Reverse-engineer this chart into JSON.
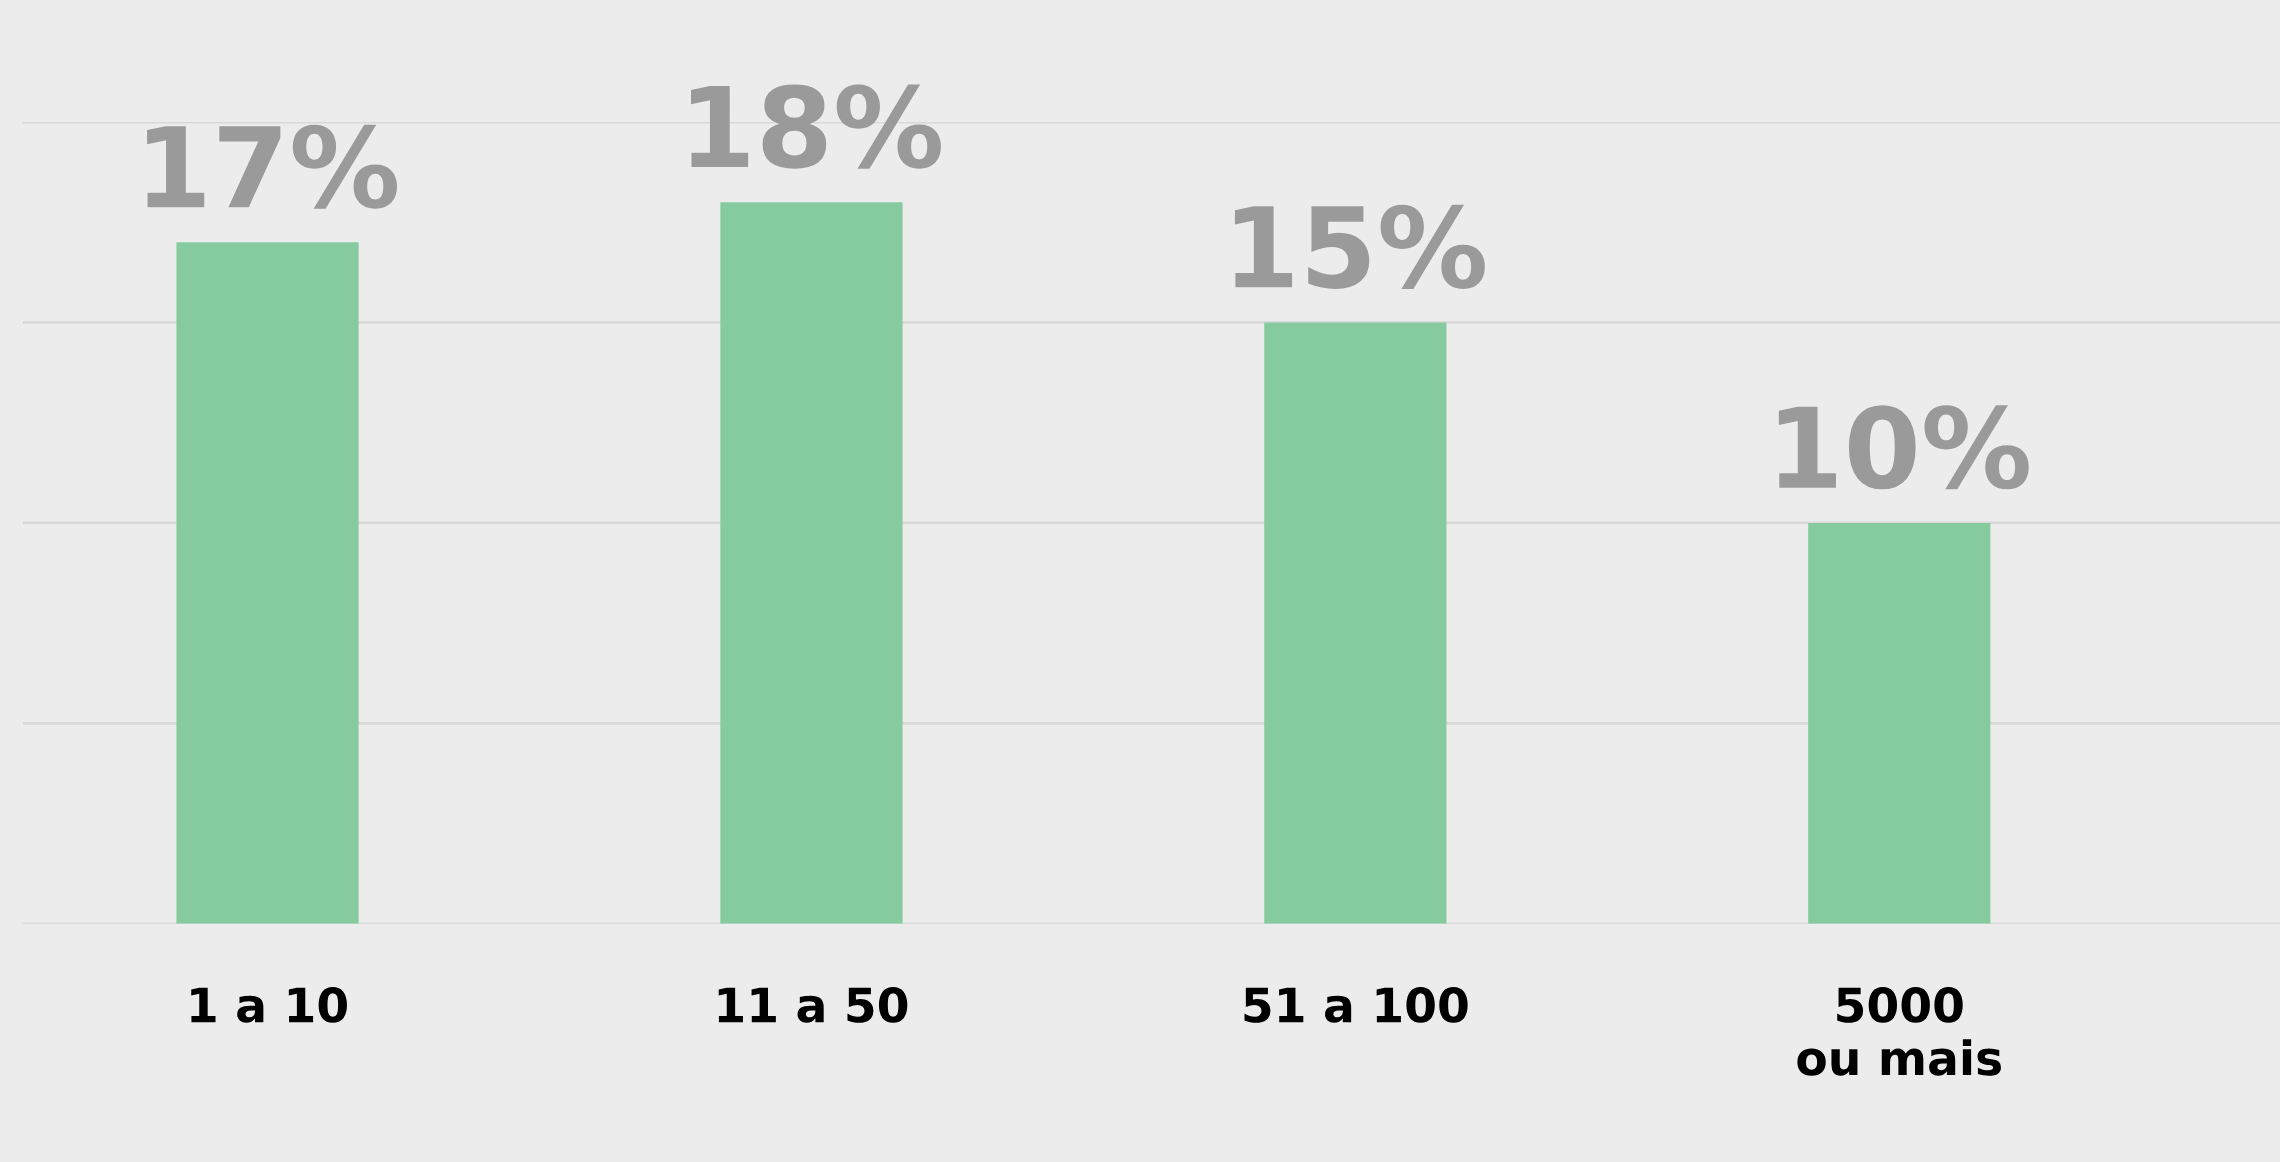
{
  "chart_data": {
    "type": "bar",
    "categories": [
      "1 a 10",
      "11 a 50",
      "51 a 100",
      "5000\nou mais"
    ],
    "values": [
      17,
      18,
      15,
      10
    ],
    "color": "#86cba0",
    "data_labels": true,
    "value_labels": [
      "17%",
      "18%",
      "15%",
      "10%"
    ],
    "ylim": [
      0,
      20
    ],
    "yticks": [
      {
        "value": 0,
        "label": null
      },
      {
        "value": 5,
        "label": null
      },
      {
        "value": 10,
        "label": null
      },
      {
        "value": 15,
        "label": null
      },
      {
        "value": 20,
        "label": null
      }
    ],
    "grid": "y",
    "tick_labels": "x"
  }
}
